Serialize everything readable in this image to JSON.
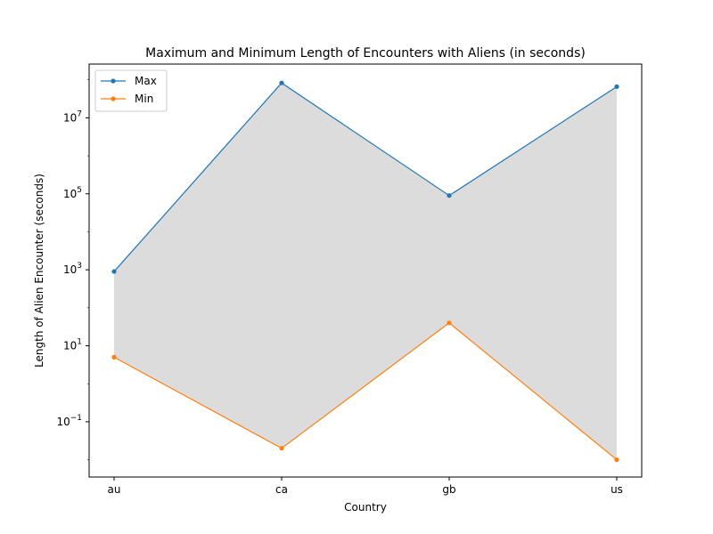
{
  "chart_data": {
    "type": "line",
    "title": "Maximum and Minimum Length of Encounters with Aliens (in seconds)",
    "xlabel": "Country",
    "ylabel": "Length of Alien Encounter (seconds)",
    "categories": [
      "au",
      "ca",
      "gb",
      "us"
    ],
    "yscale": "log",
    "ylim": [
      0.0035,
      260000000
    ],
    "y_ticks": [
      {
        "value": 0.1,
        "base": "10",
        "exp": "−1"
      },
      {
        "value": 10,
        "base": "10",
        "exp": "1"
      },
      {
        "value": 1000,
        "base": "10",
        "exp": "3"
      },
      {
        "value": 100000,
        "base": "10",
        "exp": "5"
      },
      {
        "value": 10000000,
        "base": "10",
        "exp": "7"
      }
    ],
    "series": [
      {
        "name": "Max",
        "color": "#1f77b4",
        "values": [
          900,
          82800000,
          90000,
          66276000
        ]
      },
      {
        "name": "Min",
        "color": "#ff7f0e",
        "values": [
          5,
          0.02,
          40,
          0.01
        ]
      }
    ],
    "fill_between": {
      "color": "#dcdcdc"
    },
    "legend": {
      "position": "top-left"
    }
  }
}
